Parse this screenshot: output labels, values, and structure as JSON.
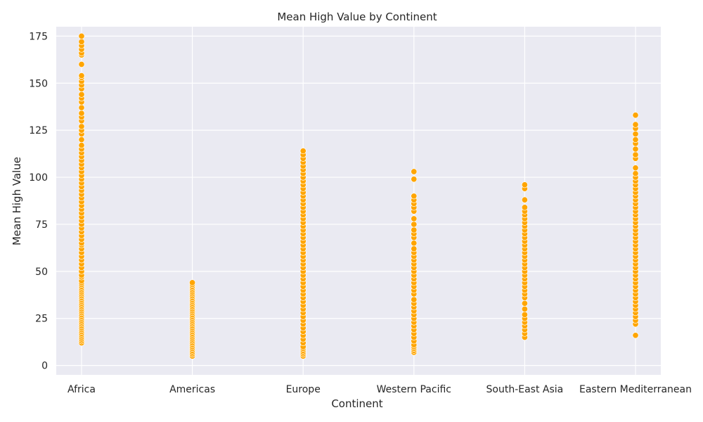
{
  "chart_data": {
    "type": "scatter",
    "title": "Mean High Value by Continent",
    "xlabel": "Continent",
    "ylabel": "Mean High Value",
    "categories": [
      "Africa",
      "Americas",
      "Europe",
      "Western Pacific",
      "South-East Asia",
      "Eastern Mediterranean"
    ],
    "ylim": [
      -5,
      180
    ],
    "yticks": [
      0,
      25,
      50,
      75,
      100,
      125,
      150,
      175
    ],
    "grid": true,
    "marker_color": "#FFA500",
    "background_color": "#EAEAF2",
    "series": [
      {
        "category": "Africa",
        "values": [
          12,
          13,
          14,
          15,
          16,
          17,
          18,
          19,
          20,
          21,
          22,
          23,
          24,
          25,
          26,
          27,
          28,
          29,
          30,
          31,
          32,
          33,
          34,
          35,
          36,
          37,
          38,
          39,
          40,
          41,
          42,
          43,
          44,
          45,
          47,
          48,
          50,
          52,
          54,
          56,
          58,
          60,
          62,
          64,
          65,
          67,
          69,
          71,
          73,
          75,
          77,
          79,
          81,
          83,
          85,
          87,
          89,
          91,
          93,
          95,
          97,
          99,
          101,
          103,
          105,
          107,
          109,
          111,
          113,
          115,
          117,
          120,
          123,
          125,
          127,
          130,
          132,
          134,
          137,
          140,
          142,
          144,
          147,
          149,
          151,
          153,
          154,
          160,
          165,
          166,
          168,
          170,
          172,
          175
        ]
      },
      {
        "category": "Americas",
        "values": [
          5,
          6,
          7,
          8,
          9,
          10,
          11,
          12,
          13,
          14,
          15,
          16,
          17,
          18,
          19,
          20,
          21,
          22,
          23,
          24,
          25,
          26,
          27,
          28,
          29,
          30,
          31,
          32,
          33,
          34,
          35,
          36,
          37,
          38,
          39,
          40,
          41,
          42,
          43,
          44
        ]
      },
      {
        "category": "Europe",
        "values": [
          5,
          6,
          7,
          8,
          9,
          10,
          12,
          14,
          16,
          18,
          20,
          22,
          24,
          26,
          28,
          30,
          32,
          34,
          36,
          38,
          40,
          42,
          44,
          46,
          48,
          50,
          52,
          54,
          56,
          58,
          60,
          62,
          64,
          66,
          68,
          70,
          72,
          74,
          76,
          78,
          80,
          82,
          84,
          86,
          88,
          90,
          92,
          94,
          96,
          98,
          100,
          102,
          104,
          106,
          108,
          110,
          112,
          114
        ]
      },
      {
        "category": "Western Pacific",
        "values": [
          7,
          8,
          9,
          10,
          11,
          13,
          15,
          17,
          19,
          21,
          23,
          25,
          27,
          29,
          31,
          33,
          35,
          38,
          40,
          42,
          44,
          46,
          48,
          50,
          52,
          54,
          56,
          58,
          60,
          62,
          65,
          68,
          70,
          72,
          75,
          78,
          82,
          84,
          86,
          88,
          90,
          99,
          103
        ]
      },
      {
        "category": "South-East Asia",
        "values": [
          15,
          17,
          19,
          21,
          23,
          25,
          27,
          30,
          33,
          36,
          38,
          40,
          42,
          44,
          46,
          48,
          50,
          52,
          54,
          56,
          58,
          60,
          62,
          64,
          66,
          68,
          70,
          72,
          74,
          76,
          78,
          80,
          82,
          84,
          88,
          94,
          96
        ]
      },
      {
        "category": "Eastern Mediterranean",
        "values": [
          16,
          22,
          24,
          26,
          28,
          30,
          32,
          34,
          36,
          38,
          40,
          42,
          44,
          46,
          48,
          50,
          52,
          54,
          56,
          58,
          60,
          62,
          64,
          66,
          68,
          70,
          72,
          74,
          76,
          78,
          80,
          82,
          84,
          86,
          88,
          90,
          92,
          94,
          96,
          98,
          100,
          102,
          105,
          110,
          112,
          115,
          118,
          120,
          123,
          126,
          128,
          133
        ]
      }
    ]
  }
}
